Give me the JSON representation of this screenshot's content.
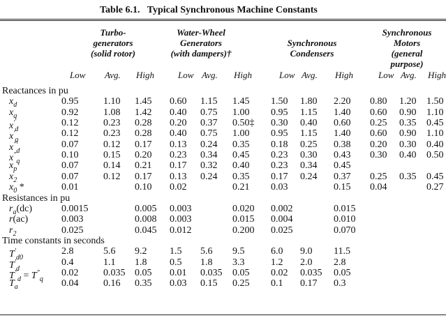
{
  "title": "Table 6.1.   Typical Synchronous Machine Constants",
  "groups": [
    {
      "lines": [
        "Turbo-",
        "generators",
        "(solid rotor)"
      ],
      "columns": [
        "Low",
        "Avg.",
        "High"
      ]
    },
    {
      "lines": [
        "Water-Wheel",
        "Generators",
        "(with dampers)†"
      ],
      "columns": [
        "Low",
        "Avg.",
        "High"
      ]
    },
    {
      "lines": [
        "Synchronous",
        "Condensers"
      ],
      "columns": [
        "Low",
        "Avg.",
        "High"
      ]
    },
    {
      "lines": [
        "Synchronous",
        "Motors",
        "(general",
        "purpose)"
      ],
      "columns": [
        "Low",
        "Avg.",
        "High"
      ]
    }
  ],
  "sections": [
    {
      "heading": "Reactances in pu",
      "rows": [
        {
          "label": [
            {
              "text": "x",
              "style": "normal"
            },
            {
              "text": "d",
              "style": "sub"
            }
          ],
          "cells": [
            "0.95",
            "1.10",
            "1.45",
            "0.60",
            "1.15",
            "1.45",
            "1.50",
            "1.80",
            "2.20",
            "0.80",
            "1.20",
            "1.50"
          ]
        },
        {
          "label": [
            {
              "text": "x",
              "style": "normal"
            },
            {
              "text": "q",
              "style": "sub"
            }
          ],
          "cells": [
            "0.92",
            "1.08",
            "1.42",
            "0.40",
            "0.75",
            "1.00",
            "0.95",
            "1.15",
            "1.40",
            "0.60",
            "0.90",
            "1.10"
          ]
        },
        {
          "label": [
            {
              "text": "x",
              "style": "normal"
            },
            {
              "text": "′",
              "style": "sup"
            },
            {
              "text": "d",
              "style": "sub"
            }
          ],
          "cells": [
            "0.12",
            "0.23",
            "0.28",
            "0.20",
            "0.37",
            "0.50‡",
            "0.30",
            "0.40",
            "0.60",
            "0.25",
            "0.35",
            "0.45"
          ]
        },
        {
          "label": [
            {
              "text": "x",
              "style": "normal"
            },
            {
              "text": "′",
              "style": "sup"
            },
            {
              "text": "q",
              "style": "sub"
            }
          ],
          "cells": [
            "0.12",
            "0.23",
            "0.28",
            "0.40",
            "0.75",
            "1.00",
            "0.95",
            "1.15",
            "1.40",
            "0.60",
            "0.90",
            "1.10"
          ]
        },
        {
          "label": [
            {
              "text": "x",
              "style": "normal"
            },
            {
              "text": "″",
              "style": "sup"
            },
            {
              "text": "d",
              "style": "sub"
            }
          ],
          "cells": [
            "0.07",
            "0.12",
            "0.17",
            "0.13",
            "0.24",
            "0.35",
            "0.18",
            "0.25",
            "0.38",
            "0.20",
            "0.30",
            "0.40"
          ]
        },
        {
          "label": [
            {
              "text": "x",
              "style": "normal"
            },
            {
              "text": "″",
              "style": "sup"
            },
            {
              "text": "q",
              "style": "sub"
            }
          ],
          "cells": [
            "0.10",
            "0.15",
            "0.20",
            "0.23",
            "0.34",
            "0.45",
            "0.23",
            "0.30",
            "0.43",
            "0.30",
            "0.40",
            "0.50"
          ]
        },
        {
          "label": [
            {
              "text": "x",
              "style": "normal"
            },
            {
              "text": "p",
              "style": "sub"
            }
          ],
          "cells": [
            "0.07",
            "0.14",
            "0.21",
            "0.17",
            "0.32",
            "0.40",
            "0.23",
            "0.34",
            "0.45",
            null,
            null,
            null
          ]
        },
        {
          "label": [
            {
              "text": "x",
              "style": "normal"
            },
            {
              "text": "2",
              "style": "sub"
            }
          ],
          "cells": [
            "0.07",
            "0.12",
            "0.17",
            "0.13",
            "0.24",
            "0.35",
            "0.17",
            "0.24",
            "0.37",
            "0.25",
            "0.35",
            "0.45"
          ]
        },
        {
          "label": [
            {
              "text": "x",
              "style": "normal"
            },
            {
              "text": "0",
              "style": "sub"
            },
            {
              "text": " *",
              "style": "plain"
            }
          ],
          "cells": [
            "0.01",
            null,
            "0.10",
            "0.02",
            null,
            "0.21",
            "0.03",
            null,
            "0.15",
            "0.04",
            null,
            "0.27"
          ]
        }
      ]
    },
    {
      "heading": "Resistances in pu",
      "rows": [
        {
          "label": [
            {
              "text": "r",
              "style": "normal"
            },
            {
              "text": "a",
              "style": "sub"
            },
            {
              "text": "(dc)",
              "style": "plain"
            }
          ],
          "cells": [
            "0.0015",
            null,
            "0.005",
            "0.003",
            null,
            "0.020",
            "0.002",
            null,
            "0.015",
            null,
            null,
            null
          ]
        },
        {
          "label": [
            {
              "text": "r",
              "style": "normal"
            },
            {
              "text": "(ac)",
              "style": "plain"
            }
          ],
          "cells": [
            "0.003",
            null,
            "0.008",
            "0.003",
            null,
            "0.015",
            "0.004",
            null,
            "0.010",
            null,
            null,
            null
          ]
        },
        {
          "label": [
            {
              "text": "r",
              "style": "normal"
            },
            {
              "text": "2",
              "style": "sub"
            }
          ],
          "cells": [
            "0.025",
            null,
            "0.045",
            "0.012",
            null,
            "0.200",
            "0.025",
            null,
            "0.070",
            null,
            null,
            null
          ]
        }
      ]
    },
    {
      "heading": "Time constants in seconds",
      "rows": [
        {
          "label": [
            {
              "text": "T",
              "style": "normal"
            },
            {
              "text": "′",
              "style": "sup"
            },
            {
              "text": "d0",
              "style": "sub"
            }
          ],
          "cells": [
            "2.8",
            "5.6",
            "9.2",
            "1.5",
            "5.6",
            "9.5",
            "6.0",
            "9.0",
            "11.5",
            null,
            null,
            null
          ]
        },
        {
          "label": [
            {
              "text": "T",
              "style": "normal"
            },
            {
              "text": "′",
              "style": "sup"
            },
            {
              "text": "d",
              "style": "sub"
            }
          ],
          "cells": [
            "0.4",
            "1.1",
            "1.8",
            "0.5",
            "1.8",
            "3.3",
            "1.2",
            "2.0",
            "2.8",
            null,
            null,
            null
          ]
        },
        {
          "label": [
            {
              "text": "T",
              "style": "normal"
            },
            {
              "text": "″",
              "style": "sup"
            },
            {
              "text": "d",
              "style": "sub"
            },
            {
              "text": " = ",
              "style": "plain"
            },
            {
              "text": "T",
              "style": "normal"
            },
            {
              "text": "″",
              "style": "sup"
            },
            {
              "text": "q",
              "style": "sub"
            }
          ],
          "cells": [
            "0.02",
            "0.035",
            "0.05",
            "0.01",
            "0.035",
            "0.05",
            "0.02",
            "0.035",
            "0.05",
            null,
            null,
            null
          ]
        },
        {
          "label": [
            {
              "text": "T",
              "style": "normal"
            },
            {
              "text": "a",
              "style": "sub"
            }
          ],
          "cells": [
            "0.04",
            "0.16",
            "0.35",
            "0.03",
            "0.15",
            "0.25",
            "0.1",
            "0.17",
            "0.3",
            null,
            null,
            null
          ]
        }
      ]
    }
  ]
}
